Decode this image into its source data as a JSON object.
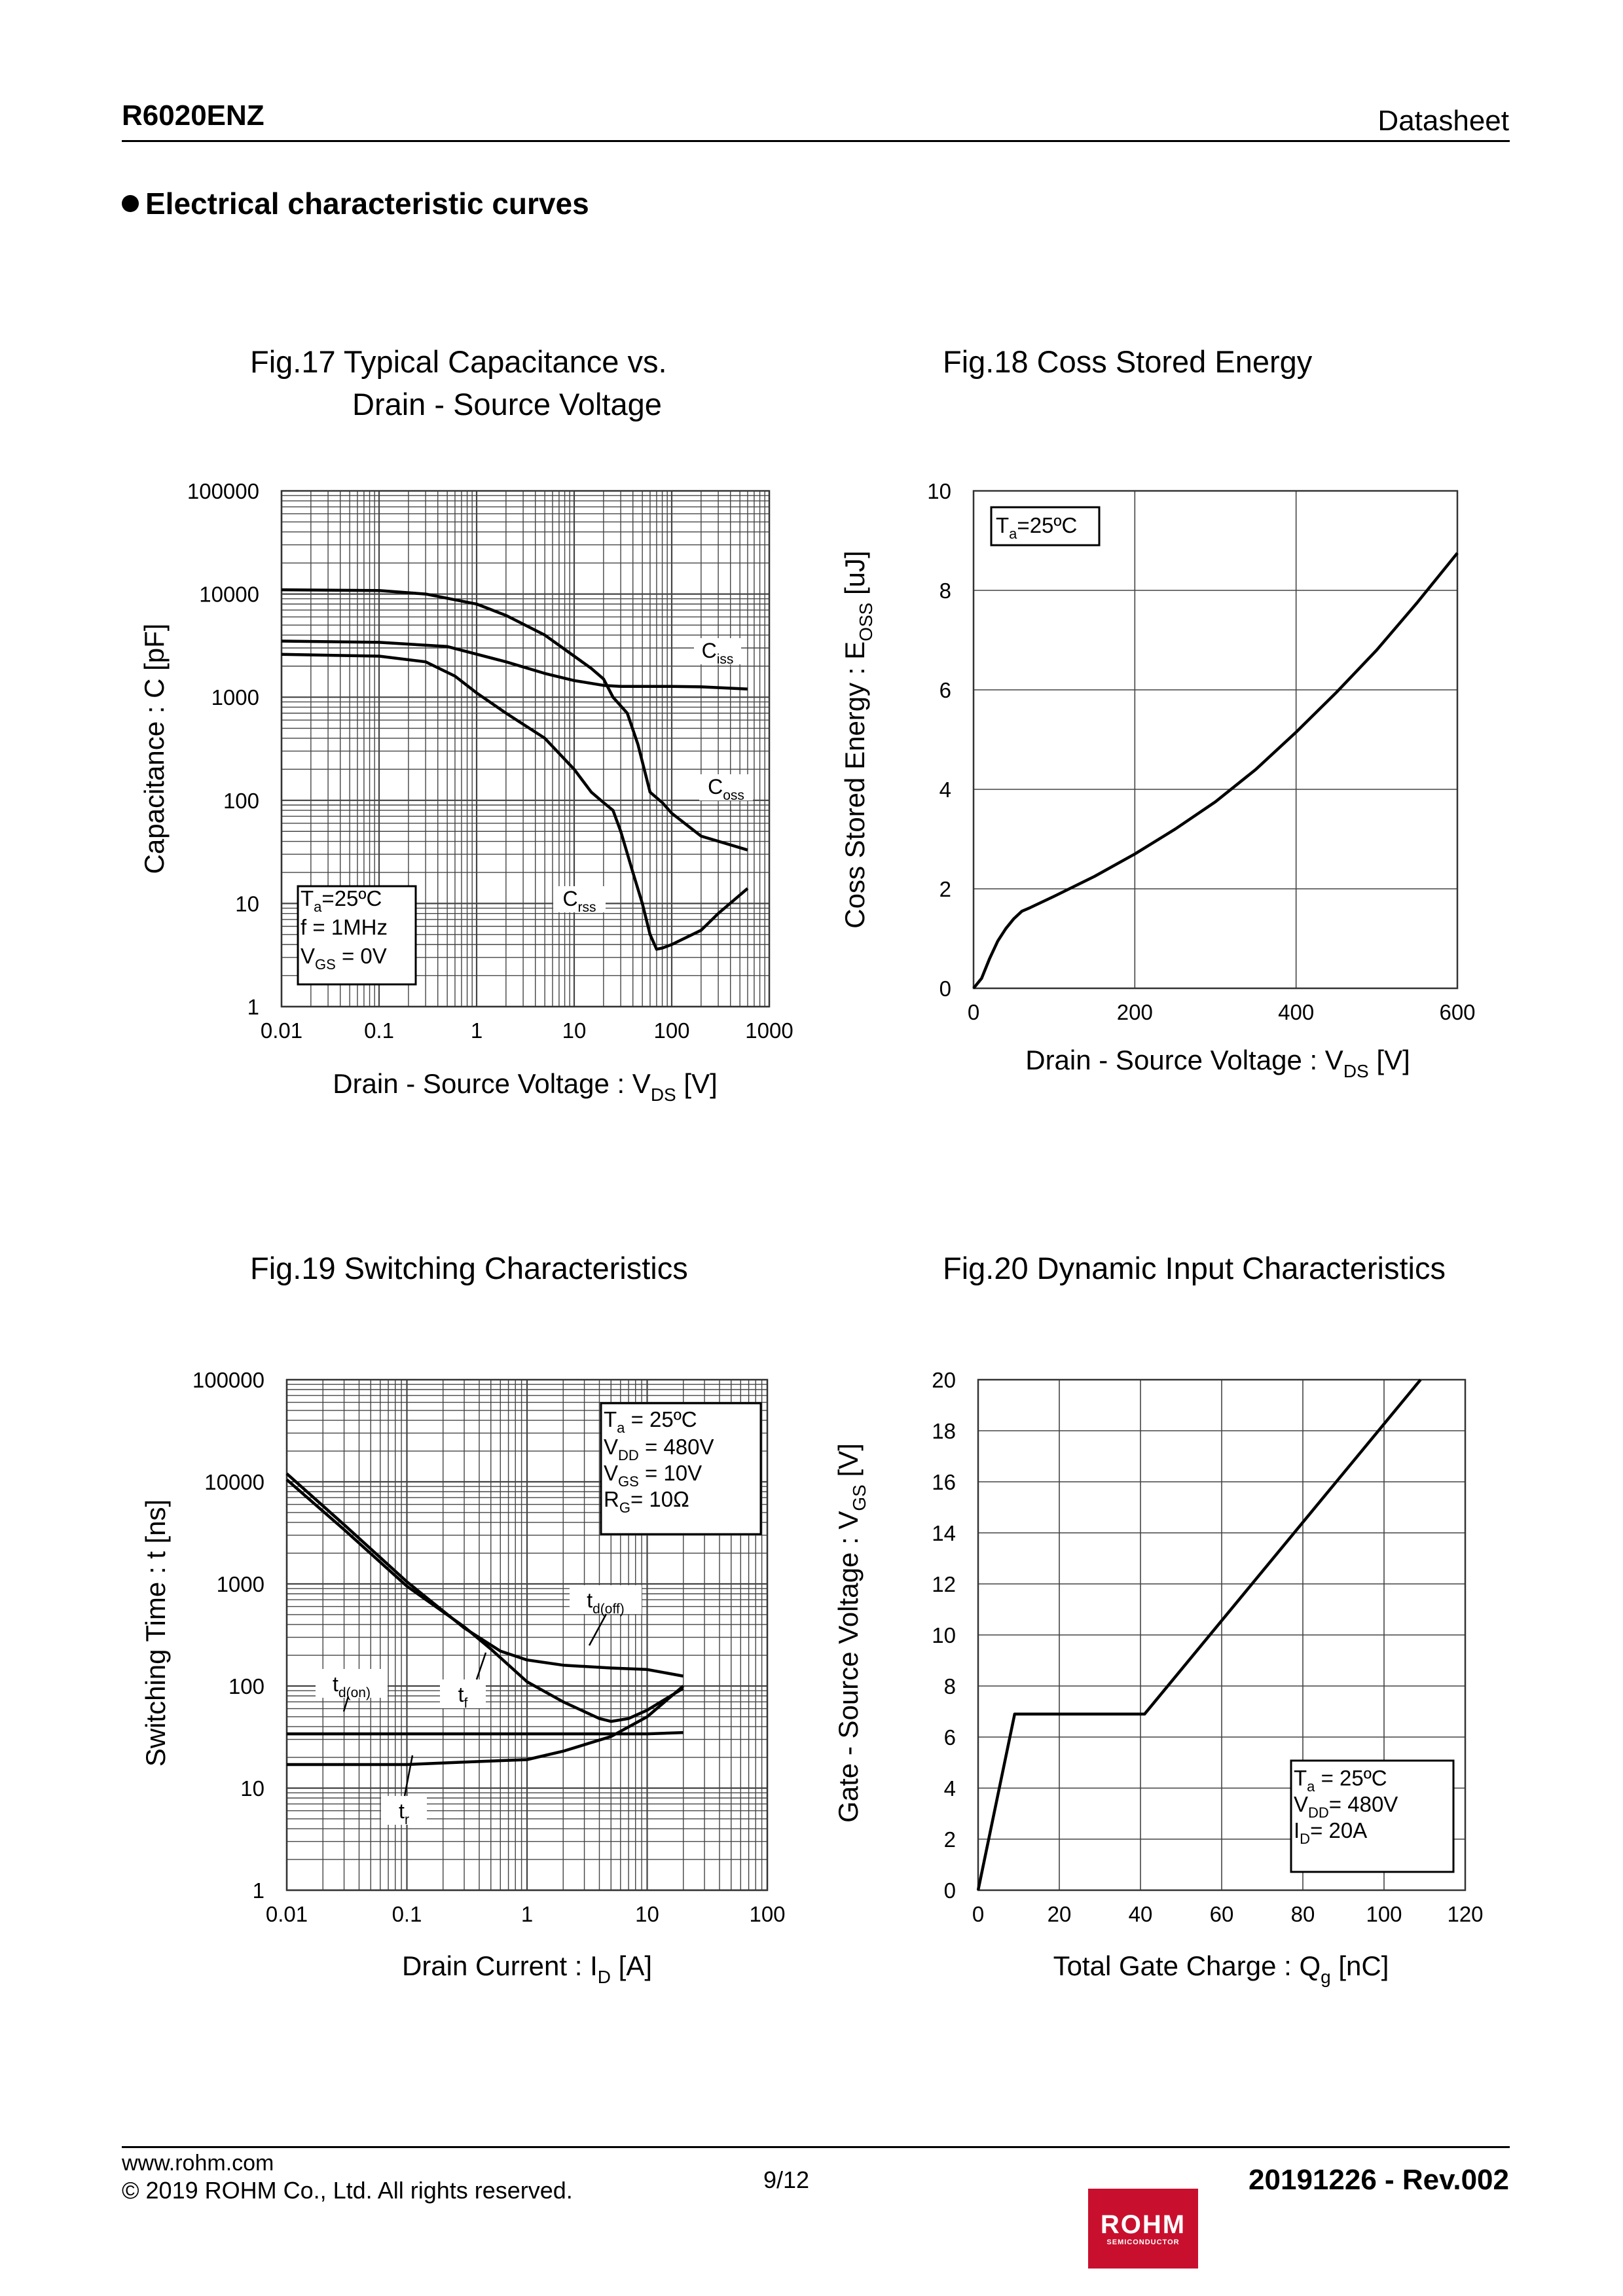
{
  "header": {
    "part_number": "R6020ENZ",
    "doc_type": "Datasheet"
  },
  "section": {
    "title": "Electrical characteristic curves"
  },
  "colors": {
    "curve": "#000000",
    "grid": "#444444",
    "logo": "#c8102e"
  },
  "chart_data": [
    {
      "id": "fig17",
      "type": "line",
      "title_line1": "Fig.17 Typical Capacitance vs.",
      "title_line2": "Drain - Source Voltage",
      "xlabel": "Drain - Source Voltage : V_DS [V]",
      "ylabel": "Capacitance : C [pF]",
      "xscale": "log",
      "yscale": "log",
      "xlim": [
        0.01,
        1000
      ],
      "ylim": [
        1,
        100000
      ],
      "xticks": [
        "0.01",
        "0.1",
        "1",
        "10",
        "100",
        "1000"
      ],
      "yticks": [
        "1",
        "10",
        "100",
        "1000",
        "10000",
        "100000"
      ],
      "annotation": [
        "T_a=25ºC",
        "f = 1MHz",
        "V_GS = 0V"
      ],
      "series": [
        {
          "name": "C_iss",
          "x": [
            0.01,
            0.1,
            0.5,
            2,
            5,
            10,
            20,
            30,
            50,
            100,
            200,
            600
          ],
          "y": [
            3500,
            3400,
            3100,
            2200,
            1700,
            1450,
            1300,
            1270,
            1270,
            1270,
            1260,
            1200
          ]
        },
        {
          "name": "C_oss",
          "x": [
            0.01,
            0.1,
            0.3,
            1,
            2,
            5,
            10,
            15,
            20,
            25,
            35,
            45,
            60,
            80,
            100,
            200,
            600
          ],
          "y": [
            11000,
            10800,
            10000,
            8000,
            6200,
            4000,
            2500,
            1900,
            1500,
            1000,
            700,
            350,
            120,
            95,
            75,
            45,
            33
          ]
        },
        {
          "name": "C_rss",
          "x": [
            0.01,
            0.1,
            0.3,
            0.6,
            1,
            2,
            5,
            10,
            15,
            20,
            25,
            30,
            40,
            50,
            60,
            70,
            80,
            100,
            200,
            300,
            600
          ],
          "y": [
            2600,
            2500,
            2200,
            1600,
            1100,
            700,
            400,
            200,
            120,
            95,
            80,
            50,
            20,
            10,
            5,
            3.6,
            3.7,
            4,
            5.5,
            8,
            14
          ]
        }
      ]
    },
    {
      "id": "fig18",
      "type": "line",
      "title_line1": "Fig.18 Coss Stored Energy",
      "xlabel": "Drain - Source Voltage : V_DS [V]",
      "ylabel": "Coss Stored Energy : E_OSS [uJ]",
      "xlim": [
        0,
        600
      ],
      "ylim": [
        0,
        10
      ],
      "xticks": [
        "0",
        "200",
        "400",
        "600"
      ],
      "yticks": [
        "0",
        "2",
        "4",
        "6",
        "8",
        "10"
      ],
      "annotation": [
        "T_a=25ºC"
      ],
      "series": [
        {
          "name": "E_oss",
          "x": [
            0,
            10,
            20,
            30,
            40,
            50,
            60,
            70,
            100,
            150,
            200,
            250,
            300,
            350,
            400,
            450,
            500,
            550,
            600
          ],
          "y": [
            0,
            0.2,
            0.6,
            0.95,
            1.2,
            1.4,
            1.55,
            1.62,
            1.85,
            2.25,
            2.7,
            3.2,
            3.75,
            4.4,
            5.15,
            5.95,
            6.8,
            7.75,
            8.75
          ]
        }
      ]
    },
    {
      "id": "fig19",
      "type": "line",
      "title_line1": "Fig.19 Switching Characteristics",
      "xlabel": "Drain Current : I_D [A]",
      "ylabel": "Switching Time : t [ns]",
      "xscale": "log",
      "yscale": "log",
      "xlim": [
        0.01,
        100
      ],
      "ylim": [
        1,
        100000
      ],
      "xticks": [
        "0.01",
        "0.1",
        "1",
        "10",
        "100"
      ],
      "yticks": [
        "1",
        "10",
        "100",
        "1000",
        "10000",
        "100000"
      ],
      "annotation": [
        "T_a = 25ºC",
        "V_DD = 480V",
        "V_GS = 10V",
        "R_G= 10Ω"
      ],
      "series": [
        {
          "name": "t_d(off)",
          "x": [
            0.01,
            0.03,
            0.1,
            0.3,
            0.6,
            1,
            2,
            5,
            10,
            20
          ],
          "y": [
            12000,
            3800,
            1050,
            370,
            220,
            180,
            160,
            150,
            145,
            125
          ]
        },
        {
          "name": "t_f",
          "x": [
            0.01,
            0.03,
            0.1,
            0.3,
            0.5,
            1,
            2,
            4,
            5,
            7,
            10,
            20
          ],
          "y": [
            10500,
            3400,
            950,
            380,
            230,
            110,
            70,
            48,
            45,
            48,
            58,
            95
          ]
        },
        {
          "name": "t_d(on)",
          "x": [
            0.01,
            0.1,
            1,
            10,
            20
          ],
          "y": [
            34,
            34,
            34,
            34,
            35
          ]
        },
        {
          "name": "t_r",
          "x": [
            0.01,
            0.1,
            0.3,
            1,
            2,
            5,
            10,
            20
          ],
          "y": [
            17,
            17,
            18,
            19,
            23,
            32,
            50,
            100
          ]
        }
      ]
    },
    {
      "id": "fig20",
      "type": "line",
      "title_line1": "Fig.20 Dynamic Input Characteristics",
      "xlabel": "Total Gate Charge : Q_g [nC]",
      "ylabel": "Gate - Source Voltage : V_GS [V]",
      "xlim": [
        0,
        120
      ],
      "ylim": [
        0,
        20
      ],
      "xticks": [
        "0",
        "20",
        "40",
        "60",
        "80",
        "100",
        "120"
      ],
      "yticks": [
        "0",
        "2",
        "4",
        "6",
        "8",
        "10",
        "12",
        "14",
        "16",
        "18",
        "20"
      ],
      "annotation": [
        "T_a = 25ºC",
        "V_DD= 480V",
        "I_D= 20A"
      ],
      "series": [
        {
          "name": "V_GS",
          "x": [
            0,
            9,
            41,
            109
          ],
          "y": [
            0,
            6.9,
            6.9,
            20
          ]
        }
      ]
    }
  ],
  "footer": {
    "url": "www.rohm.com",
    "copyright": "© 2019 ROHM Co., Ltd. All rights reserved.",
    "page": "9/12",
    "revision": "20191226 - Rev.002",
    "logo_text": "ROHM",
    "logo_sub": "SEMICONDUCTOR"
  }
}
